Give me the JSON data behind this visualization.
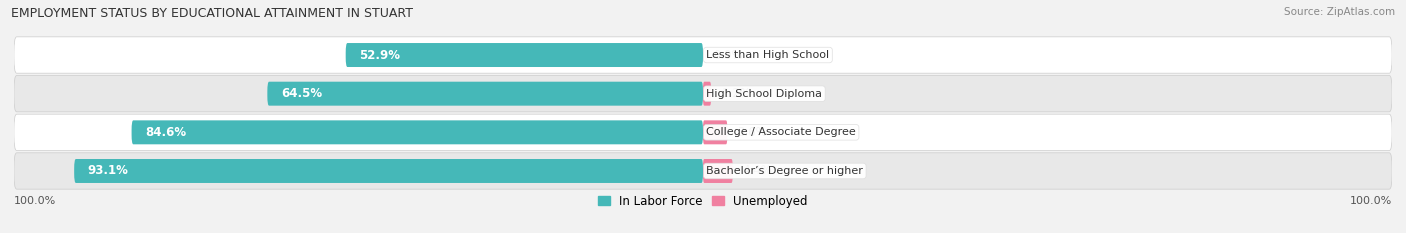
{
  "title": "EMPLOYMENT STATUS BY EDUCATIONAL ATTAINMENT IN STUART",
  "source": "Source: ZipAtlas.com",
  "categories": [
    "Less than High School",
    "High School Diploma",
    "College / Associate Degree",
    "Bachelor’s Degree or higher"
  ],
  "labor_force": [
    52.9,
    64.5,
    84.6,
    93.1
  ],
  "unemployed": [
    0.0,
    1.2,
    3.6,
    4.4
  ],
  "labor_force_color": "#45b8b8",
  "unemployed_color": "#f080a0",
  "bg_color": "#f2f2f2",
  "row_bg_color_odd": "#ffffff",
  "row_bg_color_even": "#e8e8e8",
  "title_fontsize": 9,
  "label_fontsize": 8.5,
  "tick_fontsize": 8,
  "legend_fontsize": 8.5,
  "axis_label_left": "100.0%",
  "axis_label_right": "100.0%",
  "bar_height": 0.62,
  "total_width": 100.0
}
